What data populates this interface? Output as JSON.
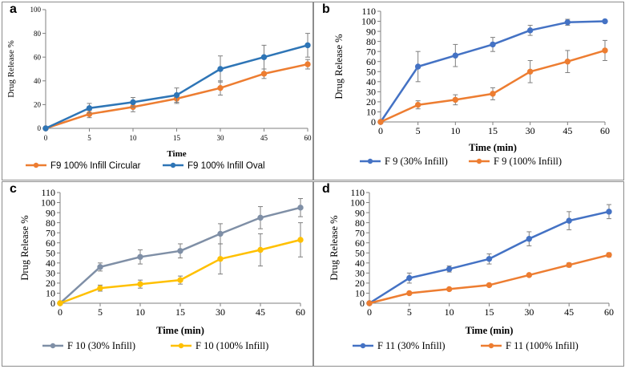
{
  "chart_data": [
    {
      "panel": "a",
      "type": "line",
      "x": [
        0,
        5,
        10,
        15,
        30,
        45,
        60
      ],
      "xlabel": "Time",
      "ylabel": "Drug Release %",
      "ylim": [
        0,
        100
      ],
      "yticks": [
        0,
        20,
        40,
        60,
        80,
        100
      ],
      "legend_position": "bottom",
      "series": [
        {
          "name": "F9 100% Infill Circular",
          "color": "#ED7D31",
          "values": [
            0,
            12,
            18,
            25,
            34,
            46,
            54
          ],
          "errors": [
            0,
            3,
            4,
            4,
            6,
            4,
            4
          ]
        },
        {
          "name": "F9 100% Infill Oval",
          "color": "#2E75B6",
          "values": [
            0,
            17,
            22,
            28,
            50,
            60,
            70
          ],
          "errors": [
            0,
            4,
            4,
            6,
            11,
            10,
            10
          ]
        }
      ]
    },
    {
      "panel": "b",
      "type": "line",
      "x": [
        0,
        5,
        10,
        15,
        30,
        45,
        60
      ],
      "xlabel": "Time  (min)",
      "ylabel": "Drug  Release  %",
      "ylim": [
        0,
        110
      ],
      "yticks": [
        0,
        10,
        20,
        30,
        40,
        50,
        60,
        70,
        80,
        90,
        100,
        110
      ],
      "legend_position": "bottom",
      "series": [
        {
          "name": "F 9 (30% Infill)",
          "color": "#4472C4",
          "values": [
            0,
            55,
            66,
            77,
            91,
            99,
            100
          ],
          "errors": [
            0,
            15,
            11,
            7,
            5,
            3,
            1
          ]
        },
        {
          "name": "F 9 (100% Infill)",
          "color": "#ED7D31",
          "values": [
            0,
            17,
            22,
            28,
            50,
            60,
            71
          ],
          "errors": [
            0,
            4,
            5,
            6,
            11,
            11,
            10
          ]
        }
      ]
    },
    {
      "panel": "c",
      "type": "line",
      "x": [
        0,
        5,
        10,
        15,
        30,
        45,
        60
      ],
      "xlabel": "Time  (min)",
      "ylabel": "Drug  Release  %",
      "ylim": [
        0,
        110
      ],
      "yticks": [
        0,
        10,
        20,
        30,
        40,
        50,
        60,
        70,
        80,
        90,
        100,
        110
      ],
      "legend_position": "bottom",
      "series": [
        {
          "name": "F 10 (30% Infill)",
          "color": "#7F8FA6",
          "values": [
            0,
            36,
            46,
            52,
            69,
            85,
            95
          ],
          "errors": [
            0,
            4,
            7,
            7,
            10,
            11,
            9
          ]
        },
        {
          "name": "F 10 (100% Infill)",
          "color": "#FFC000",
          "values": [
            0,
            15,
            19,
            23,
            44,
            53,
            63
          ],
          "errors": [
            0,
            3,
            4,
            4,
            15,
            16,
            17
          ]
        }
      ]
    },
    {
      "panel": "d",
      "type": "line",
      "x": [
        0,
        5,
        10,
        15,
        30,
        45,
        60
      ],
      "xlabel": "Time  (min)",
      "ylabel": "Drug  Release  %",
      "ylim": [
        0,
        110
      ],
      "yticks": [
        0,
        10,
        20,
        30,
        40,
        50,
        60,
        70,
        80,
        90,
        100,
        110
      ],
      "legend_position": "bottom",
      "series": [
        {
          "name": "F 11 (30% Infill)",
          "color": "#4472C4",
          "values": [
            0,
            25,
            34,
            44,
            64,
            82,
            91
          ],
          "errors": [
            0,
            5,
            3,
            5,
            7,
            9,
            7
          ]
        },
        {
          "name": "F 11 (100% Infill)",
          "color": "#ED7D31",
          "values": [
            0,
            10,
            14,
            18,
            28,
            38,
            48
          ],
          "errors": [
            0,
            1,
            1,
            1,
            1,
            2,
            2
          ]
        }
      ]
    }
  ]
}
